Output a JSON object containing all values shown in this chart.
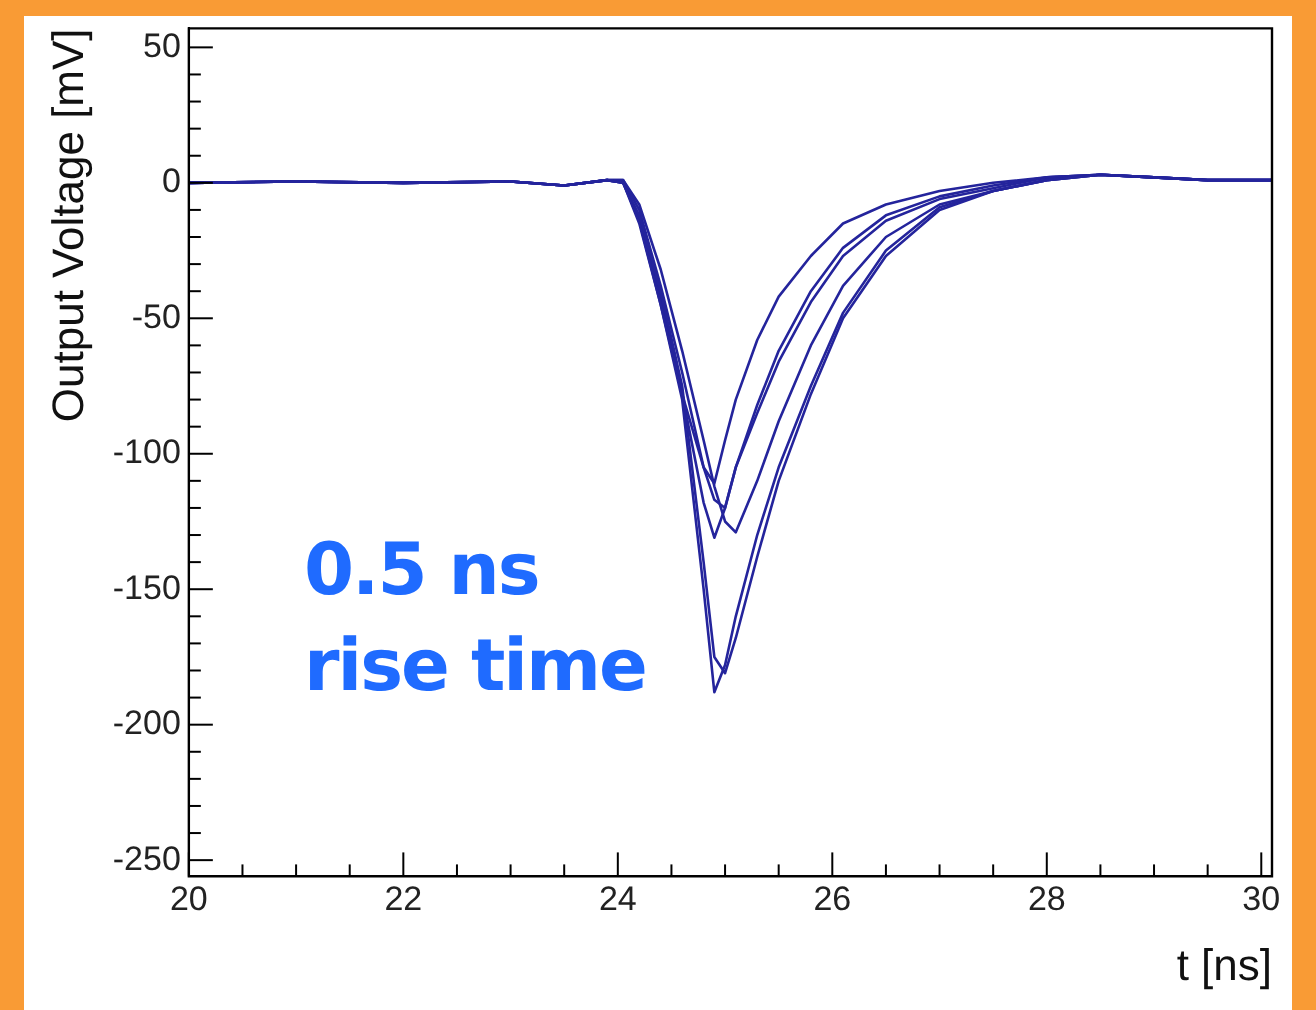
{
  "chart_data": {
    "type": "line",
    "xlabel": "t [ns]",
    "ylabel": "Output Voltage [mV]",
    "annotations": [
      "0.5 ns rise time"
    ],
    "x": [
      20,
      21,
      22,
      23,
      23.5,
      23.9,
      24.05,
      24.2,
      24.4,
      24.6,
      24.8,
      24.9,
      25.0,
      25.1,
      25.3,
      25.5,
      25.8,
      26.1,
      26.5,
      27,
      27.5,
      28,
      28.5,
      29,
      29.5,
      30.1
    ],
    "series": [
      {
        "color": "#24249c",
        "values": [
          0,
          0.5,
          0,
          0.5,
          -1,
          1,
          0,
          -15,
          -45,
          -80,
          -150,
          -188,
          -178,
          -160,
          -130,
          -105,
          -75,
          -48,
          -25,
          -9,
          -3,
          1,
          3,
          2,
          1,
          1
        ]
      },
      {
        "color": "#24249c",
        "values": [
          0,
          0.5,
          0,
          0.5,
          -1,
          1,
          0,
          -12,
          -40,
          -75,
          -140,
          -175,
          -181,
          -168,
          -138,
          -110,
          -78,
          -50,
          -27,
          -10,
          -3,
          1,
          3,
          2,
          1,
          1
        ]
      },
      {
        "color": "#24249c",
        "values": [
          0,
          0.5,
          0,
          0.5,
          -1,
          1,
          0,
          -14,
          -45,
          -78,
          -105,
          -111,
          -95,
          -80,
          -58,
          -42,
          -27,
          -15,
          -8,
          -3,
          0,
          2,
          3,
          2,
          1,
          1
        ]
      },
      {
        "color": "#24249c",
        "values": [
          0,
          0.5,
          0,
          0.5,
          -1,
          1,
          1,
          -10,
          -38,
          -70,
          -105,
          -117,
          -120,
          -105,
          -82,
          -62,
          -40,
          -24,
          -12,
          -5,
          -1,
          2,
          3,
          2,
          1,
          1
        ]
      },
      {
        "color": "#24249c",
        "values": [
          0,
          0.5,
          0,
          0.5,
          -1,
          1,
          0,
          -13,
          -42,
          -78,
          -118,
          -131,
          -120,
          -105,
          -85,
          -66,
          -44,
          -27,
          -14,
          -6,
          -2,
          2,
          3,
          2,
          1,
          1
        ]
      },
      {
        "color": "#24249c",
        "values": [
          0,
          0.5,
          0,
          0.5,
          -1,
          1,
          1,
          -8,
          -32,
          -62,
          -95,
          -112,
          -125,
          -129,
          -110,
          -88,
          -60,
          -38,
          -20,
          -8,
          -3,
          1,
          3,
          2,
          1,
          1
        ]
      }
    ],
    "xlim": [
      20,
      30.1
    ],
    "xticks": [
      20,
      {
        "value": 20.5,
        "label": null
      },
      {
        "value": 21,
        "label": null
      },
      {
        "value": 21.5,
        "label": null
      },
      22,
      {
        "value": 22.5,
        "label": null
      },
      {
        "value": 23,
        "label": null
      },
      {
        "value": 23.5,
        "label": null
      },
      24,
      {
        "value": 24.5,
        "label": null
      },
      {
        "value": 25,
        "label": null
      },
      {
        "value": 25.5,
        "label": null
      },
      26,
      {
        "value": 26.5,
        "label": null
      },
      {
        "value": 27,
        "label": null
      },
      {
        "value": 27.5,
        "label": null
      },
      28,
      {
        "value": 28.5,
        "label": null
      },
      {
        "value": 29,
        "label": null
      },
      {
        "value": 29.5,
        "label": null
      },
      30
    ],
    "ylim": [
      -256,
      57
    ],
    "yticks": [
      -250,
      {
        "value": -240,
        "label": null
      },
      {
        "value": -230,
        "label": null
      },
      {
        "value": -220,
        "label": null
      },
      {
        "value": -210,
        "label": null
      },
      -200,
      {
        "value": -190,
        "label": null
      },
      {
        "value": -180,
        "label": null
      },
      {
        "value": -170,
        "label": null
      },
      {
        "value": -160,
        "label": null
      },
      -150,
      {
        "value": -140,
        "label": null
      },
      {
        "value": -130,
        "label": null
      },
      {
        "value": -120,
        "label": null
      },
      {
        "value": -110,
        "label": null
      },
      -100,
      {
        "value": -90,
        "label": null
      },
      {
        "value": -80,
        "label": null
      },
      {
        "value": -70,
        "label": null
      },
      {
        "value": -60,
        "label": null
      },
      -50,
      {
        "value": -40,
        "label": null
      },
      {
        "value": -30,
        "label": null
      },
      {
        "value": -20,
        "label": null
      },
      {
        "value": -10,
        "label": null
      },
      0,
      {
        "value": 10,
        "label": null
      },
      {
        "value": 20,
        "label": null
      },
      {
        "value": 30,
        "label": null
      },
      {
        "value": 40,
        "label": null
      },
      50
    ],
    "grid": false,
    "legend": false,
    "marker": "none",
    "line_style": "solid"
  }
}
